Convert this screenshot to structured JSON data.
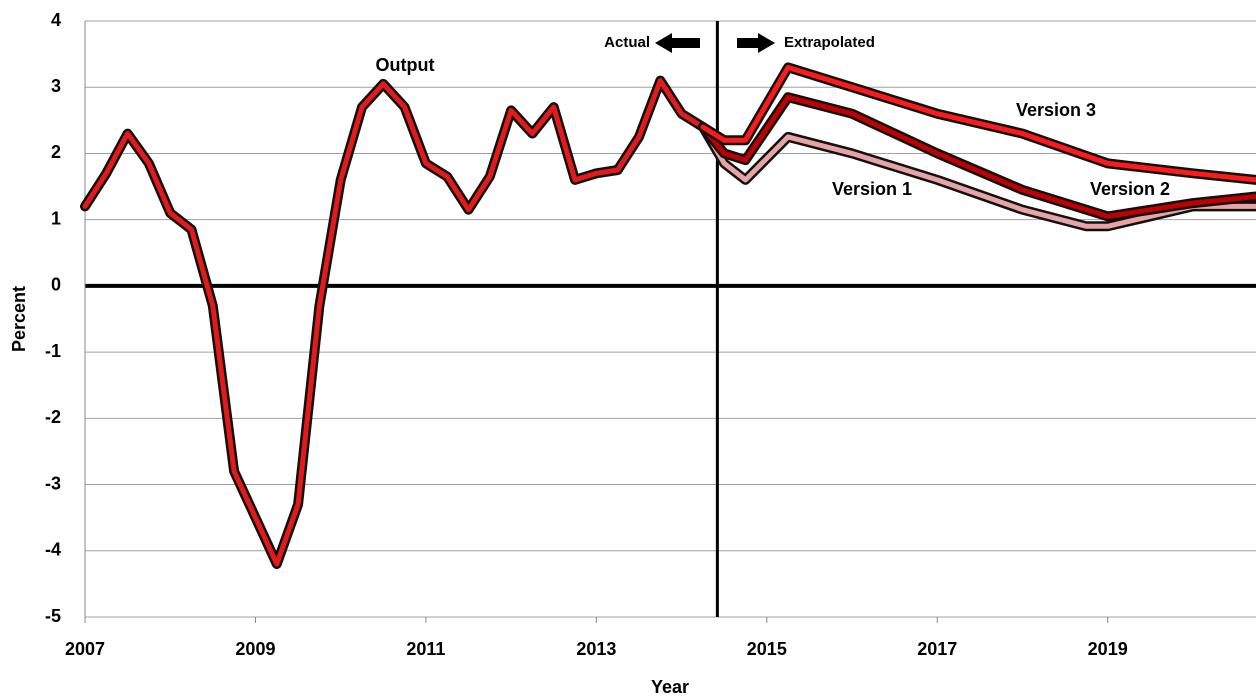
{
  "chart_data": {
    "type": "line",
    "x_label": "Year",
    "y_label": "Percent",
    "xlim": [
      2007,
      2020.74
    ],
    "xticks": [
      2007,
      2009,
      2011,
      2013,
      2015,
      2017,
      2019
    ],
    "ylim": [
      -5,
      4
    ],
    "yticks": [
      -5,
      -4,
      -3,
      -2,
      -1,
      0,
      1,
      2,
      3,
      4
    ],
    "grid": true,
    "divider": 2014.42,
    "annotations": {
      "actual": "Actual",
      "extrapolated": "Extrapolated"
    },
    "series": [
      {
        "name": "Output",
        "color": "#e41a1a",
        "x": [
          2007,
          2007.25,
          2007.5,
          2007.75,
          2008,
          2008.25,
          2008.5,
          2008.75,
          2009,
          2009.25,
          2009.5,
          2009.75,
          2010,
          2010.25,
          2010.5,
          2010.75,
          2011,
          2011.25,
          2011.5,
          2011.75,
          2012,
          2012.25,
          2012.5,
          2012.75,
          2013,
          2013.25,
          2013.5,
          2013.75,
          2014,
          2014.25
        ],
        "values": [
          1.2,
          1.7,
          2.3,
          1.85,
          1.1,
          0.85,
          -0.3,
          -2.8,
          -3.5,
          -4.2,
          -3.3,
          -0.3,
          1.6,
          2.7,
          3.05,
          2.7,
          1.85,
          1.65,
          1.15,
          1.65,
          2.65,
          2.3,
          2.7,
          1.6,
          1.7,
          1.75,
          2.25,
          3.1,
          2.6,
          2.4
        ]
      },
      {
        "name": "Version 1",
        "color": "#e8a4a4",
        "x": [
          2014.25,
          2014.5,
          2014.75,
          2015.25,
          2016,
          2017,
          2018,
          2018.75,
          2019,
          2020,
          2020.74
        ],
        "values": [
          2.4,
          1.85,
          1.6,
          2.25,
          2.0,
          1.6,
          1.15,
          0.9,
          0.9,
          1.2,
          1.2
        ]
      },
      {
        "name": "Version 2",
        "color": "#c00000",
        "x": [
          2014.25,
          2014.5,
          2014.75,
          2015.25,
          2016,
          2017,
          2018,
          2019,
          2020,
          2020.74
        ],
        "values": [
          2.4,
          2.0,
          1.9,
          2.85,
          2.6,
          2.0,
          1.45,
          1.05,
          1.25,
          1.35
        ]
      },
      {
        "name": "Version 3",
        "color": "#ff1a1a",
        "x": [
          2014.25,
          2014.5,
          2014.75,
          2015.25,
          2016,
          2017,
          2018,
          2019,
          2020,
          2020.74
        ],
        "values": [
          2.4,
          2.2,
          2.2,
          3.3,
          3.0,
          2.6,
          2.3,
          1.85,
          1.7,
          1.6
        ]
      }
    ]
  }
}
